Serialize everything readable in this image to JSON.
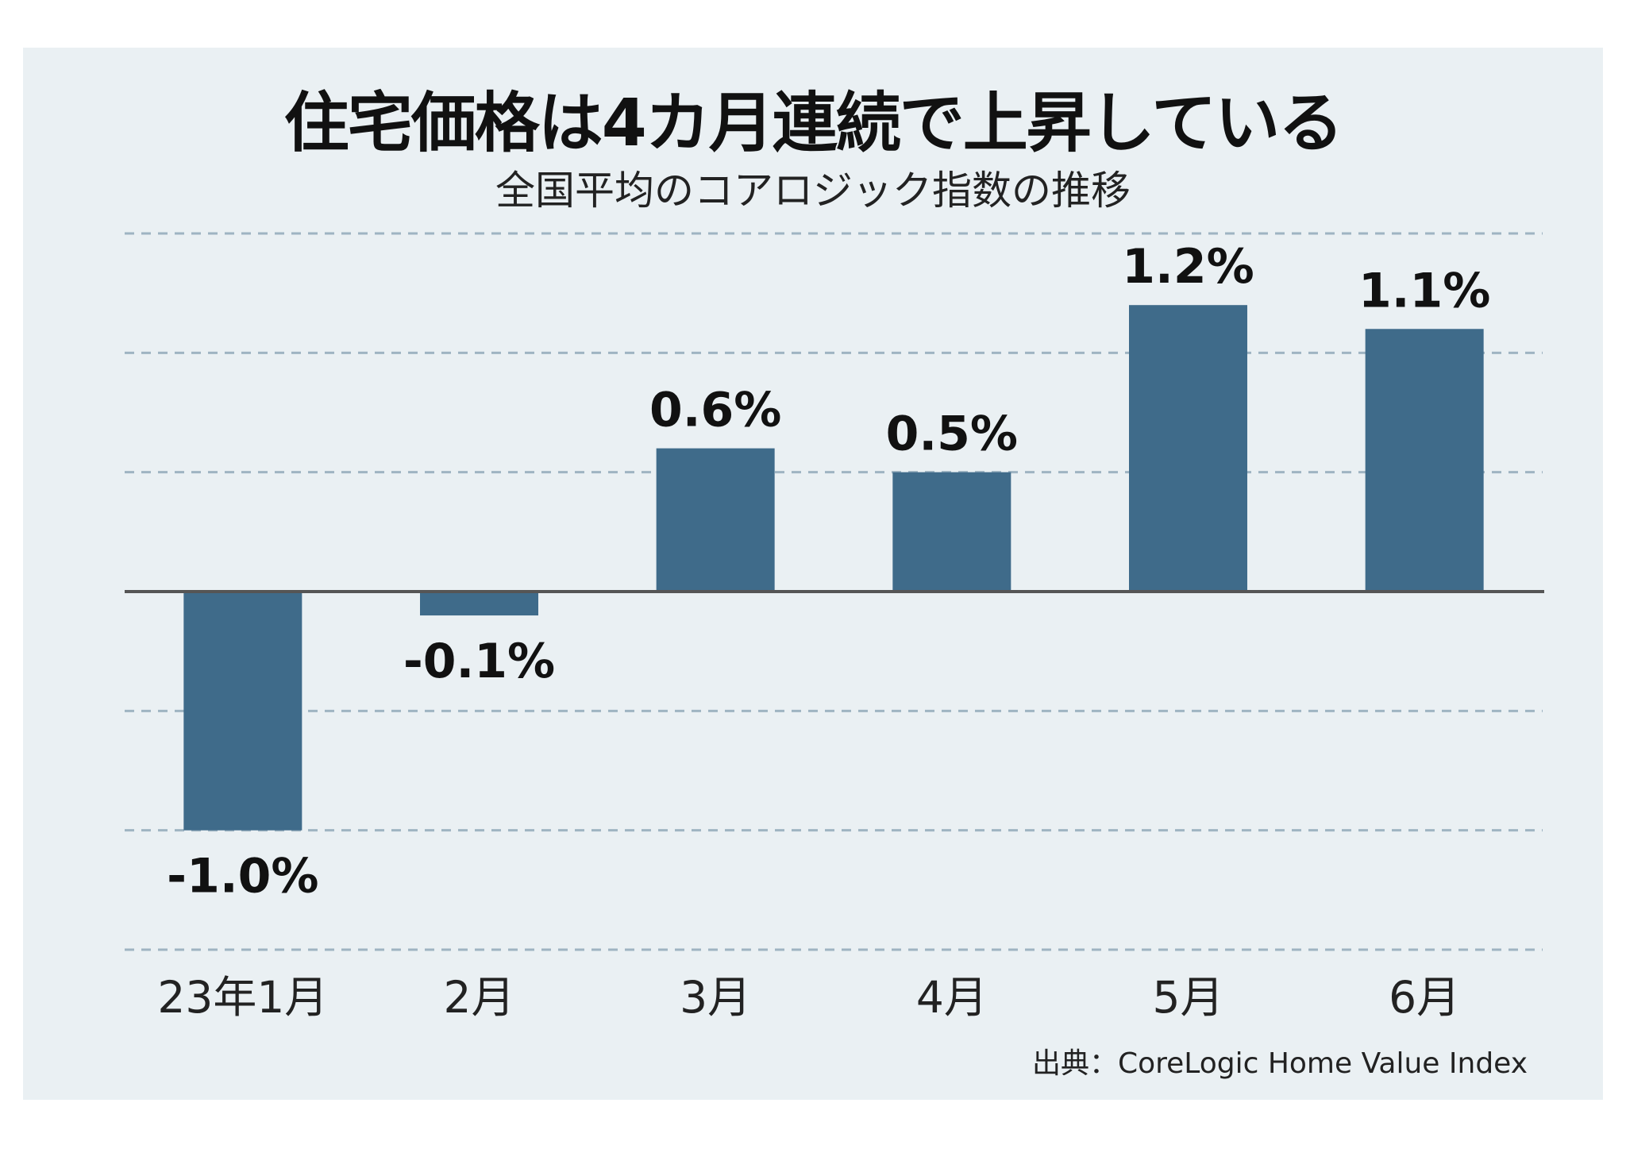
{
  "chart_data": {
    "type": "bar",
    "title": "住宅価格は4カ月連続で上昇している",
    "subtitle": "全国平均のコアロジック指数の推移",
    "categories": [
      "23年1月",
      "2月",
      "3月",
      "4月",
      "5月",
      "6月"
    ],
    "values": [
      -1.0,
      -0.1,
      0.6,
      0.5,
      1.2,
      1.1
    ],
    "data_labels": [
      "-1.0%",
      "-0.1%",
      "0.6%",
      "0.5%",
      "1.2%",
      "1.1%"
    ],
    "unit": "%",
    "ylim": [
      -1.5,
      1.5
    ],
    "gridlines": [
      1.5,
      1.0,
      0.5,
      -0.5,
      -1.0,
      -1.5
    ],
    "grid": true,
    "grid_style": "dashed",
    "source": "出典：CoreLogic Home Value Index",
    "colors": {
      "bar": "#3f6b8a",
      "background": "#eaf0f3",
      "grid": "#9fb4c2",
      "zero_line": "#555555"
    }
  }
}
